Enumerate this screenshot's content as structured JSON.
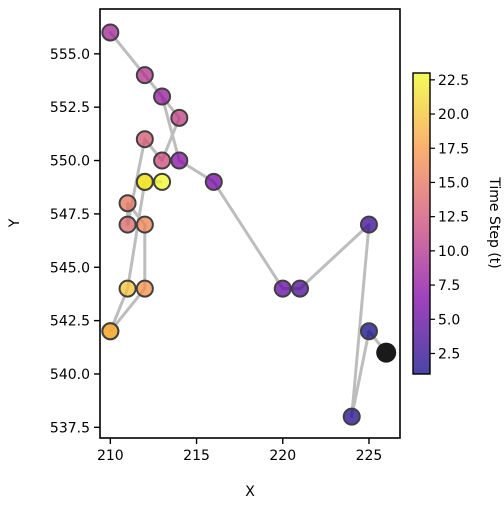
{
  "chart_data": {
    "type": "scatter",
    "title": "",
    "xlabel": "X",
    "ylabel": "Y",
    "xlim": [
      209.4,
      226.8
    ],
    "ylim": [
      537.0,
      557.1
    ],
    "xticks": [
      210,
      215,
      220,
      225
    ],
    "xtick_labels": [
      "210",
      "215",
      "220",
      "225"
    ],
    "yticks": [
      537.5,
      540.0,
      542.5,
      545.0,
      547.5,
      550.0,
      552.5,
      555.0
    ],
    "ytick_labels": [
      "537.5",
      "540.0",
      "542.5",
      "545.0",
      "547.5",
      "550.0",
      "552.5",
      "555.0"
    ],
    "colorbar": {
      "label": "Time Step (t)",
      "range": [
        1,
        23
      ],
      "colormap": "plasma",
      "ticks": [
        2.5,
        5.0,
        7.5,
        10.0,
        12.5,
        15.0,
        17.5,
        20.0,
        22.5
      ],
      "tick_labels": [
        "2.5",
        "5.0",
        "7.5",
        "10.0",
        "12.5",
        "15.0",
        "17.5",
        "20.0",
        "22.5"
      ]
    },
    "path_color": "#bdbdbd",
    "current_point_color": "#1a1a1a",
    "points": [
      {
        "t": 0,
        "x": 226,
        "y": 541
      },
      {
        "t": 1,
        "x": 225,
        "y": 542
      },
      {
        "t": 2,
        "x": 224,
        "y": 538
      },
      {
        "t": 3,
        "x": 225,
        "y": 547
      },
      {
        "t": 4,
        "x": 221,
        "y": 544
      },
      {
        "t": 5,
        "x": 220,
        "y": 544
      },
      {
        "t": 6,
        "x": 216,
        "y": 549
      },
      {
        "t": 7,
        "x": 214,
        "y": 550
      },
      {
        "t": 8,
        "x": 213,
        "y": 553
      },
      {
        "t": 9,
        "x": 210,
        "y": 556
      },
      {
        "t": 10,
        "x": 212,
        "y": 554
      },
      {
        "t": 11,
        "x": 214,
        "y": 552
      },
      {
        "t": 12,
        "x": 213,
        "y": 550
      },
      {
        "t": 13,
        "x": 212,
        "y": 551
      },
      {
        "t": 14,
        "x": 211,
        "y": 547
      },
      {
        "t": 15,
        "x": 211,
        "y": 548
      },
      {
        "t": 16,
        "x": 212,
        "y": 547
      },
      {
        "t": 17,
        "x": 212,
        "y": 544
      },
      {
        "t": 18,
        "x": 210,
        "y": 542
      },
      {
        "t": 19,
        "x": 210,
        "y": 542
      },
      {
        "t": 20,
        "x": 211,
        "y": 544
      },
      {
        "t": 21,
        "x": 212,
        "y": 549
      },
      {
        "t": 22,
        "x": 212,
        "y": 549
      },
      {
        "t": 23,
        "x": 213,
        "y": 549
      }
    ]
  }
}
